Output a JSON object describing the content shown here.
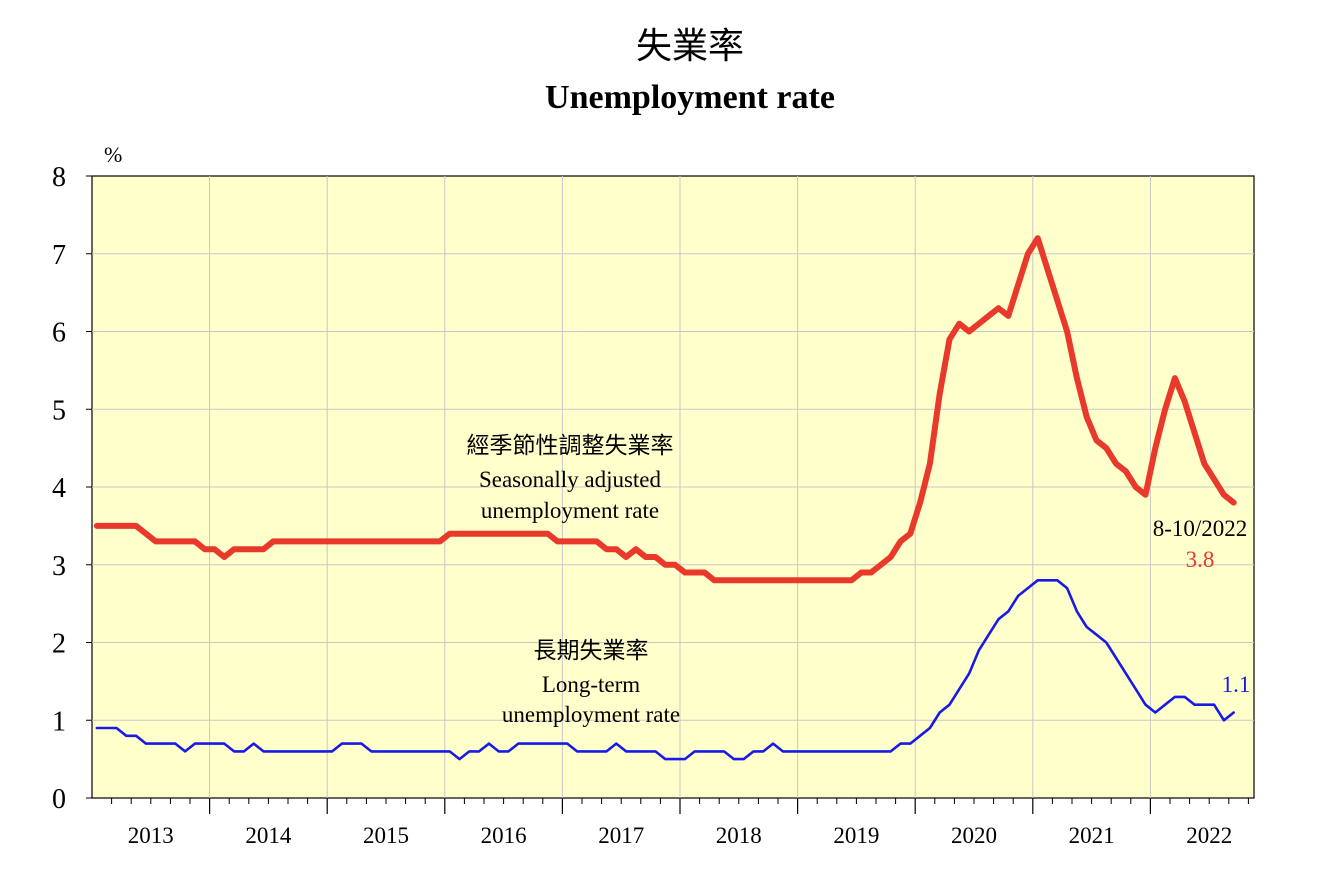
{
  "chart_data": {
    "type": "line",
    "title_zh": "失業率",
    "title_en": "Unemployment rate",
    "y_unit": "%",
    "ylim": [
      0,
      8
    ],
    "y_ticks": [
      "0",
      "1",
      "2",
      "3",
      "4",
      "5",
      "6",
      "7",
      "8"
    ],
    "x_year_labels": [
      "2013",
      "2014",
      "2015",
      "2016",
      "2017",
      "2018",
      "2019",
      "2020",
      "2021",
      "2022"
    ],
    "grid": true,
    "plot_background": "#FFFFCC",
    "series": [
      {
        "name_zh": "經季節性調整失業率",
        "name_en_1": "Seasonally adjusted",
        "name_en_2": "unemployment rate",
        "color": "#E8392B",
        "values": [
          3.5,
          3.5,
          3.5,
          3.5,
          3.5,
          3.4,
          3.3,
          3.3,
          3.3,
          3.3,
          3.3,
          3.2,
          3.2,
          3.1,
          3.2,
          3.2,
          3.2,
          3.2,
          3.3,
          3.3,
          3.3,
          3.3,
          3.3,
          3.3,
          3.3,
          3.3,
          3.3,
          3.3,
          3.3,
          3.3,
          3.3,
          3.3,
          3.3,
          3.3,
          3.3,
          3.3,
          3.4,
          3.4,
          3.4,
          3.4,
          3.4,
          3.4,
          3.4,
          3.4,
          3.4,
          3.4,
          3.4,
          3.3,
          3.3,
          3.3,
          3.3,
          3.3,
          3.2,
          3.2,
          3.1,
          3.2,
          3.1,
          3.1,
          3.0,
          3.0,
          2.9,
          2.9,
          2.9,
          2.8,
          2.8,
          2.8,
          2.8,
          2.8,
          2.8,
          2.8,
          2.8,
          2.8,
          2.8,
          2.8,
          2.8,
          2.8,
          2.8,
          2.8,
          2.9,
          2.9,
          3.0,
          3.1,
          3.3,
          3.4,
          3.8,
          4.3,
          5.2,
          5.9,
          6.1,
          6.0,
          6.1,
          6.2,
          6.3,
          6.2,
          6.6,
          7.0,
          7.2,
          6.8,
          6.4,
          6.0,
          5.4,
          4.9,
          4.6,
          4.5,
          4.3,
          4.2,
          4.0,
          3.9,
          4.5,
          5.0,
          5.4,
          5.1,
          4.7,
          4.3,
          4.1,
          3.9,
          3.8
        ]
      },
      {
        "name_zh": "長期失業率",
        "name_en_1": "Long-term",
        "name_en_2": "unemployment rate",
        "color": "#1A1AE6",
        "values": [
          0.9,
          0.9,
          0.9,
          0.8,
          0.8,
          0.7,
          0.7,
          0.7,
          0.7,
          0.6,
          0.7,
          0.7,
          0.7,
          0.7,
          0.6,
          0.6,
          0.7,
          0.6,
          0.6,
          0.6,
          0.6,
          0.6,
          0.6,
          0.6,
          0.6,
          0.7,
          0.7,
          0.7,
          0.6,
          0.6,
          0.6,
          0.6,
          0.6,
          0.6,
          0.6,
          0.6,
          0.6,
          0.5,
          0.6,
          0.6,
          0.7,
          0.6,
          0.6,
          0.7,
          0.7,
          0.7,
          0.7,
          0.7,
          0.7,
          0.6,
          0.6,
          0.6,
          0.6,
          0.7,
          0.6,
          0.6,
          0.6,
          0.6,
          0.5,
          0.5,
          0.5,
          0.6,
          0.6,
          0.6,
          0.6,
          0.5,
          0.5,
          0.6,
          0.6,
          0.7,
          0.6,
          0.6,
          0.6,
          0.6,
          0.6,
          0.6,
          0.6,
          0.6,
          0.6,
          0.6,
          0.6,
          0.6,
          0.7,
          0.7,
          0.8,
          0.9,
          1.1,
          1.2,
          1.4,
          1.6,
          1.9,
          2.1,
          2.3,
          2.4,
          2.6,
          2.7,
          2.8,
          2.8,
          2.8,
          2.7,
          2.4,
          2.2,
          2.1,
          2.0,
          1.8,
          1.6,
          1.4,
          1.2,
          1.1,
          1.2,
          1.3,
          1.3,
          1.2,
          1.2,
          1.2,
          1.0,
          1.1
        ]
      }
    ],
    "annotations": {
      "latest_period": "8-10/2022",
      "sa_latest": "3.8",
      "lt_latest": "1.1"
    }
  }
}
